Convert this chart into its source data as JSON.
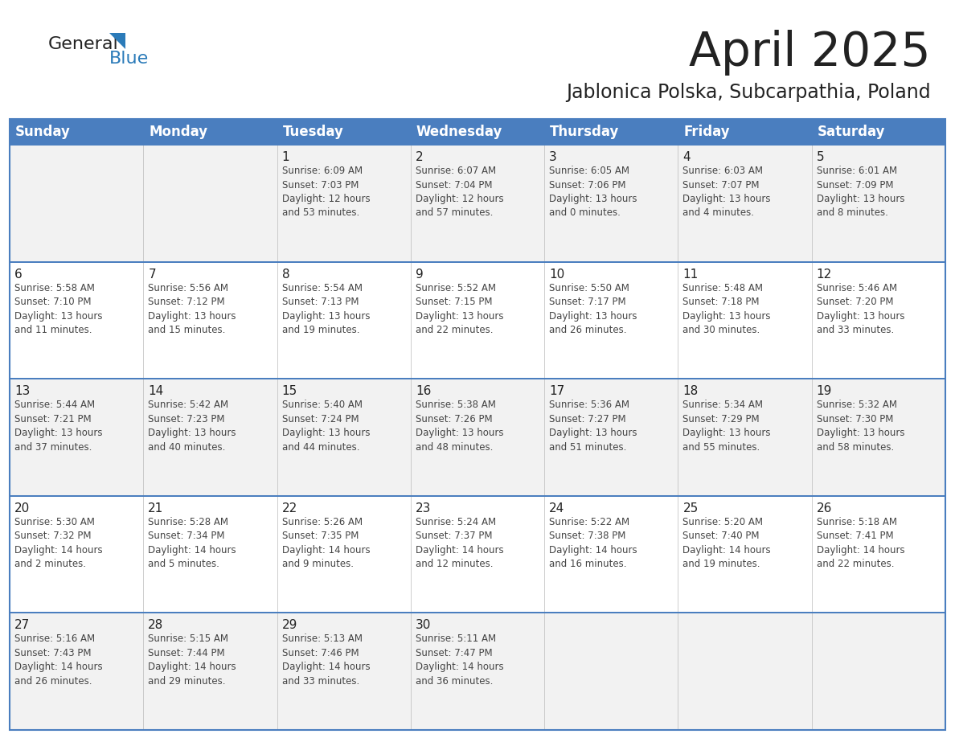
{
  "title": "April 2025",
  "subtitle": "Jablonica Polska, Subcarpathia, Poland",
  "header_bg": "#4a7ebf",
  "header_text_color": "#FFFFFF",
  "border_color": "#4a7ebf",
  "cell_bg_white": "#FFFFFF",
  "cell_bg_gray": "#F2F2F2",
  "text_dark": "#222222",
  "text_medium": "#444444",
  "day_names": [
    "Sunday",
    "Monday",
    "Tuesday",
    "Wednesday",
    "Thursday",
    "Friday",
    "Saturday"
  ],
  "weeks": [
    [
      {
        "day": "",
        "info": ""
      },
      {
        "day": "",
        "info": ""
      },
      {
        "day": "1",
        "info": "Sunrise: 6:09 AM\nSunset: 7:03 PM\nDaylight: 12 hours\nand 53 minutes."
      },
      {
        "day": "2",
        "info": "Sunrise: 6:07 AM\nSunset: 7:04 PM\nDaylight: 12 hours\nand 57 minutes."
      },
      {
        "day": "3",
        "info": "Sunrise: 6:05 AM\nSunset: 7:06 PM\nDaylight: 13 hours\nand 0 minutes."
      },
      {
        "day": "4",
        "info": "Sunrise: 6:03 AM\nSunset: 7:07 PM\nDaylight: 13 hours\nand 4 minutes."
      },
      {
        "day": "5",
        "info": "Sunrise: 6:01 AM\nSunset: 7:09 PM\nDaylight: 13 hours\nand 8 minutes."
      }
    ],
    [
      {
        "day": "6",
        "info": "Sunrise: 5:58 AM\nSunset: 7:10 PM\nDaylight: 13 hours\nand 11 minutes."
      },
      {
        "day": "7",
        "info": "Sunrise: 5:56 AM\nSunset: 7:12 PM\nDaylight: 13 hours\nand 15 minutes."
      },
      {
        "day": "8",
        "info": "Sunrise: 5:54 AM\nSunset: 7:13 PM\nDaylight: 13 hours\nand 19 minutes."
      },
      {
        "day": "9",
        "info": "Sunrise: 5:52 AM\nSunset: 7:15 PM\nDaylight: 13 hours\nand 22 minutes."
      },
      {
        "day": "10",
        "info": "Sunrise: 5:50 AM\nSunset: 7:17 PM\nDaylight: 13 hours\nand 26 minutes."
      },
      {
        "day": "11",
        "info": "Sunrise: 5:48 AM\nSunset: 7:18 PM\nDaylight: 13 hours\nand 30 minutes."
      },
      {
        "day": "12",
        "info": "Sunrise: 5:46 AM\nSunset: 7:20 PM\nDaylight: 13 hours\nand 33 minutes."
      }
    ],
    [
      {
        "day": "13",
        "info": "Sunrise: 5:44 AM\nSunset: 7:21 PM\nDaylight: 13 hours\nand 37 minutes."
      },
      {
        "day": "14",
        "info": "Sunrise: 5:42 AM\nSunset: 7:23 PM\nDaylight: 13 hours\nand 40 minutes."
      },
      {
        "day": "15",
        "info": "Sunrise: 5:40 AM\nSunset: 7:24 PM\nDaylight: 13 hours\nand 44 minutes."
      },
      {
        "day": "16",
        "info": "Sunrise: 5:38 AM\nSunset: 7:26 PM\nDaylight: 13 hours\nand 48 minutes."
      },
      {
        "day": "17",
        "info": "Sunrise: 5:36 AM\nSunset: 7:27 PM\nDaylight: 13 hours\nand 51 minutes."
      },
      {
        "day": "18",
        "info": "Sunrise: 5:34 AM\nSunset: 7:29 PM\nDaylight: 13 hours\nand 55 minutes."
      },
      {
        "day": "19",
        "info": "Sunrise: 5:32 AM\nSunset: 7:30 PM\nDaylight: 13 hours\nand 58 minutes."
      }
    ],
    [
      {
        "day": "20",
        "info": "Sunrise: 5:30 AM\nSunset: 7:32 PM\nDaylight: 14 hours\nand 2 minutes."
      },
      {
        "day": "21",
        "info": "Sunrise: 5:28 AM\nSunset: 7:34 PM\nDaylight: 14 hours\nand 5 minutes."
      },
      {
        "day": "22",
        "info": "Sunrise: 5:26 AM\nSunset: 7:35 PM\nDaylight: 14 hours\nand 9 minutes."
      },
      {
        "day": "23",
        "info": "Sunrise: 5:24 AM\nSunset: 7:37 PM\nDaylight: 14 hours\nand 12 minutes."
      },
      {
        "day": "24",
        "info": "Sunrise: 5:22 AM\nSunset: 7:38 PM\nDaylight: 14 hours\nand 16 minutes."
      },
      {
        "day": "25",
        "info": "Sunrise: 5:20 AM\nSunset: 7:40 PM\nDaylight: 14 hours\nand 19 minutes."
      },
      {
        "day": "26",
        "info": "Sunrise: 5:18 AM\nSunset: 7:41 PM\nDaylight: 14 hours\nand 22 minutes."
      }
    ],
    [
      {
        "day": "27",
        "info": "Sunrise: 5:16 AM\nSunset: 7:43 PM\nDaylight: 14 hours\nand 26 minutes."
      },
      {
        "day": "28",
        "info": "Sunrise: 5:15 AM\nSunset: 7:44 PM\nDaylight: 14 hours\nand 29 minutes."
      },
      {
        "day": "29",
        "info": "Sunrise: 5:13 AM\nSunset: 7:46 PM\nDaylight: 14 hours\nand 33 minutes."
      },
      {
        "day": "30",
        "info": "Sunrise: 5:11 AM\nSunset: 7:47 PM\nDaylight: 14 hours\nand 36 minutes."
      },
      {
        "day": "",
        "info": ""
      },
      {
        "day": "",
        "info": ""
      },
      {
        "day": "",
        "info": ""
      }
    ]
  ],
  "logo_general_color": "#222222",
  "logo_blue_color": "#2B7BB9",
  "logo_triangle_color": "#2B7BB9",
  "title_fontsize": 42,
  "subtitle_fontsize": 17,
  "header_fontsize": 12,
  "day_num_fontsize": 11,
  "info_fontsize": 8.5
}
